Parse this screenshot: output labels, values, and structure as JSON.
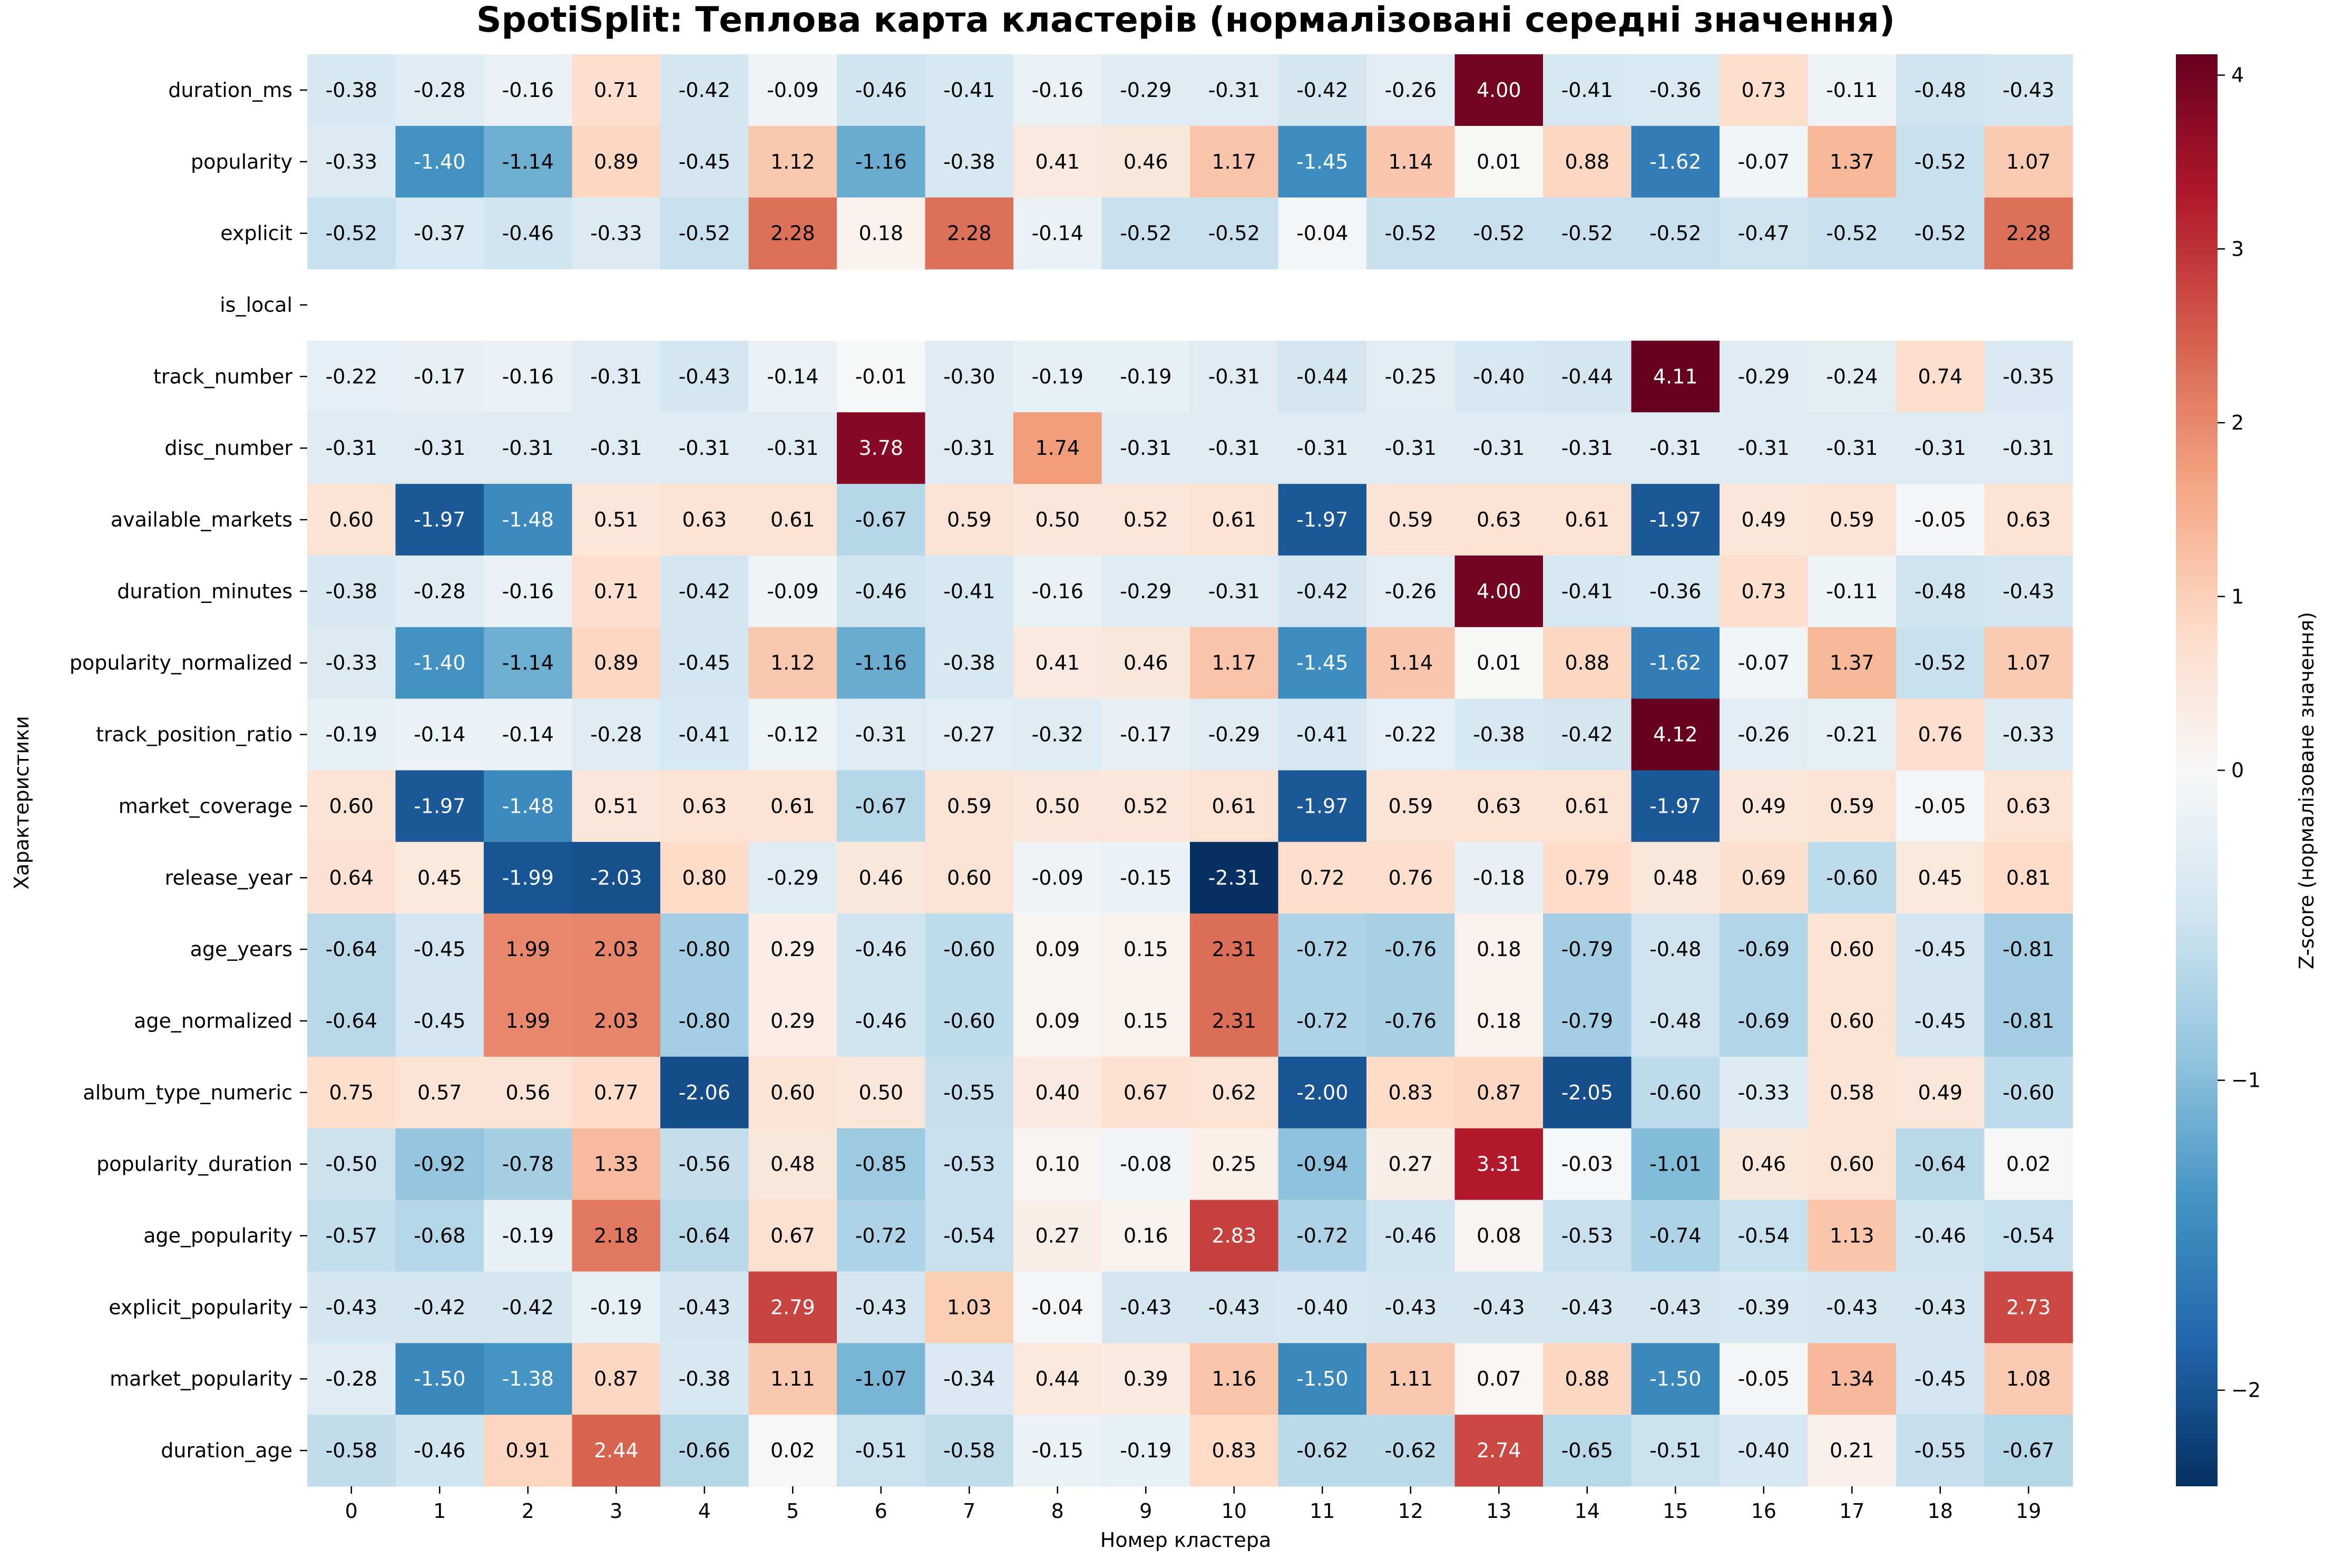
{
  "chart_data": {
    "type": "heatmap",
    "title": "SpotiSplit: Теплова карта кластерів (нормалізовані середні значення)",
    "xlabel": "Номер кластера",
    "ylabel": "Характеристики",
    "colorbar_label": "Z-score (нормалізоване значення)",
    "colormap": "RdBu_r",
    "color_range": [
      -2.31,
      4.12
    ],
    "colorbar_ticks": [
      -2,
      -1,
      0,
      1,
      2,
      3,
      4
    ],
    "colorbar_tick_labels": [
      "−2",
      "−1",
      "0",
      "1",
      "2",
      "3",
      "4"
    ],
    "colors": {
      "low": "#4393c3",
      "mid": "#f7f7f7",
      "high": "#67001f"
    },
    "x": [
      "0",
      "1",
      "2",
      "3",
      "4",
      "5",
      "6",
      "7",
      "8",
      "9",
      "10",
      "11",
      "12",
      "13",
      "14",
      "15",
      "16",
      "17",
      "18",
      "19"
    ],
    "y": [
      "duration_ms",
      "popularity",
      "explicit",
      "is_local",
      "track_number",
      "disc_number",
      "available_markets",
      "duration_minutes",
      "popularity_normalized",
      "track_position_ratio",
      "market_coverage",
      "release_year",
      "age_years",
      "age_normalized",
      "album_type_numeric",
      "popularity_duration",
      "age_popularity",
      "explicit_popularity",
      "market_popularity",
      "duration_age"
    ],
    "values": [
      [
        -0.38,
        -0.28,
        -0.16,
        0.71,
        -0.42,
        -0.09,
        -0.46,
        -0.41,
        -0.16,
        -0.29,
        -0.31,
        -0.42,
        -0.26,
        4.0,
        -0.41,
        -0.36,
        0.73,
        -0.11,
        -0.48,
        -0.43
      ],
      [
        -0.33,
        -1.4,
        -1.14,
        0.89,
        -0.45,
        1.12,
        -1.16,
        -0.38,
        0.41,
        0.46,
        1.17,
        -1.45,
        1.14,
        0.01,
        0.88,
        -1.62,
        -0.07,
        1.37,
        -0.52,
        1.07
      ],
      [
        -0.52,
        -0.37,
        -0.46,
        -0.33,
        -0.52,
        2.28,
        0.18,
        2.28,
        -0.14,
        -0.52,
        -0.52,
        -0.04,
        -0.52,
        -0.52,
        -0.52,
        -0.52,
        -0.47,
        -0.52,
        -0.52,
        2.28
      ],
      [
        null,
        null,
        null,
        null,
        null,
        null,
        null,
        null,
        null,
        null,
        null,
        null,
        null,
        null,
        null,
        null,
        null,
        null,
        null,
        null
      ],
      [
        -0.22,
        -0.17,
        -0.16,
        -0.31,
        -0.43,
        -0.14,
        -0.01,
        -0.3,
        -0.19,
        -0.19,
        -0.31,
        -0.44,
        -0.25,
        -0.4,
        -0.44,
        4.11,
        -0.29,
        -0.24,
        0.74,
        -0.35
      ],
      [
        -0.31,
        -0.31,
        -0.31,
        -0.31,
        -0.31,
        -0.31,
        3.78,
        -0.31,
        1.74,
        -0.31,
        -0.31,
        -0.31,
        -0.31,
        -0.31,
        -0.31,
        -0.31,
        -0.31,
        -0.31,
        -0.31,
        -0.31
      ],
      [
        0.6,
        -1.97,
        -1.48,
        0.51,
        0.63,
        0.61,
        -0.67,
        0.59,
        0.5,
        0.52,
        0.61,
        -1.97,
        0.59,
        0.63,
        0.61,
        -1.97,
        0.49,
        0.59,
        -0.05,
        0.63
      ],
      [
        -0.38,
        -0.28,
        -0.16,
        0.71,
        -0.42,
        -0.09,
        -0.46,
        -0.41,
        -0.16,
        -0.29,
        -0.31,
        -0.42,
        -0.26,
        4.0,
        -0.41,
        -0.36,
        0.73,
        -0.11,
        -0.48,
        -0.43
      ],
      [
        -0.33,
        -1.4,
        -1.14,
        0.89,
        -0.45,
        1.12,
        -1.16,
        -0.38,
        0.41,
        0.46,
        1.17,
        -1.45,
        1.14,
        0.01,
        0.88,
        -1.62,
        -0.07,
        1.37,
        -0.52,
        1.07
      ],
      [
        -0.19,
        -0.14,
        -0.14,
        -0.28,
        -0.41,
        -0.12,
        -0.31,
        -0.27,
        -0.32,
        -0.17,
        -0.29,
        -0.41,
        -0.22,
        -0.38,
        -0.42,
        4.12,
        -0.26,
        -0.21,
        0.76,
        -0.33
      ],
      [
        0.6,
        -1.97,
        -1.48,
        0.51,
        0.63,
        0.61,
        -0.67,
        0.59,
        0.5,
        0.52,
        0.61,
        -1.97,
        0.59,
        0.63,
        0.61,
        -1.97,
        0.49,
        0.59,
        -0.05,
        0.63
      ],
      [
        0.64,
        0.45,
        -1.99,
        -2.03,
        0.8,
        -0.29,
        0.46,
        0.6,
        -0.09,
        -0.15,
        -2.31,
        0.72,
        0.76,
        -0.18,
        0.79,
        0.48,
        0.69,
        -0.6,
        0.45,
        0.81
      ],
      [
        -0.64,
        -0.45,
        1.99,
        2.03,
        -0.8,
        0.29,
        -0.46,
        -0.6,
        0.09,
        0.15,
        2.31,
        -0.72,
        -0.76,
        0.18,
        -0.79,
        -0.48,
        -0.69,
        0.6,
        -0.45,
        -0.81
      ],
      [
        -0.64,
        -0.45,
        1.99,
        2.03,
        -0.8,
        0.29,
        -0.46,
        -0.6,
        0.09,
        0.15,
        2.31,
        -0.72,
        -0.76,
        0.18,
        -0.79,
        -0.48,
        -0.69,
        0.6,
        -0.45,
        -0.81
      ],
      [
        0.75,
        0.57,
        0.56,
        0.77,
        -2.06,
        0.6,
        0.5,
        -0.55,
        0.4,
        0.67,
        0.62,
        -2.0,
        0.83,
        0.87,
        -2.05,
        -0.6,
        -0.33,
        0.58,
        0.49,
        -0.6
      ],
      [
        -0.5,
        -0.92,
        -0.78,
        1.33,
        -0.56,
        0.48,
        -0.85,
        -0.53,
        0.1,
        -0.08,
        0.25,
        -0.94,
        0.27,
        3.31,
        -0.03,
        -1.01,
        0.46,
        0.6,
        -0.64,
        0.02
      ],
      [
        -0.57,
        -0.68,
        -0.19,
        2.18,
        -0.64,
        0.67,
        -0.72,
        -0.54,
        0.27,
        0.16,
        2.83,
        -0.72,
        -0.46,
        0.08,
        -0.53,
        -0.74,
        -0.54,
        1.13,
        -0.46,
        -0.54
      ],
      [
        -0.43,
        -0.42,
        -0.42,
        -0.19,
        -0.43,
        2.79,
        -0.43,
        1.03,
        -0.04,
        -0.43,
        -0.43,
        -0.4,
        -0.43,
        -0.43,
        -0.43,
        -0.43,
        -0.39,
        -0.43,
        -0.43,
        2.73
      ],
      [
        -0.28,
        -1.5,
        -1.38,
        0.87,
        -0.38,
        1.11,
        -1.07,
        -0.34,
        0.44,
        0.39,
        1.16,
        -1.5,
        1.11,
        0.07,
        0.88,
        -1.5,
        -0.05,
        1.34,
        -0.45,
        1.08
      ],
      [
        -0.58,
        -0.46,
        0.91,
        2.44,
        -0.66,
        0.02,
        -0.51,
        -0.58,
        -0.15,
        -0.19,
        0.83,
        -0.62,
        -0.62,
        2.74,
        -0.65,
        -0.51,
        -0.4,
        0.21,
        -0.55,
        -0.67
      ]
    ]
  }
}
